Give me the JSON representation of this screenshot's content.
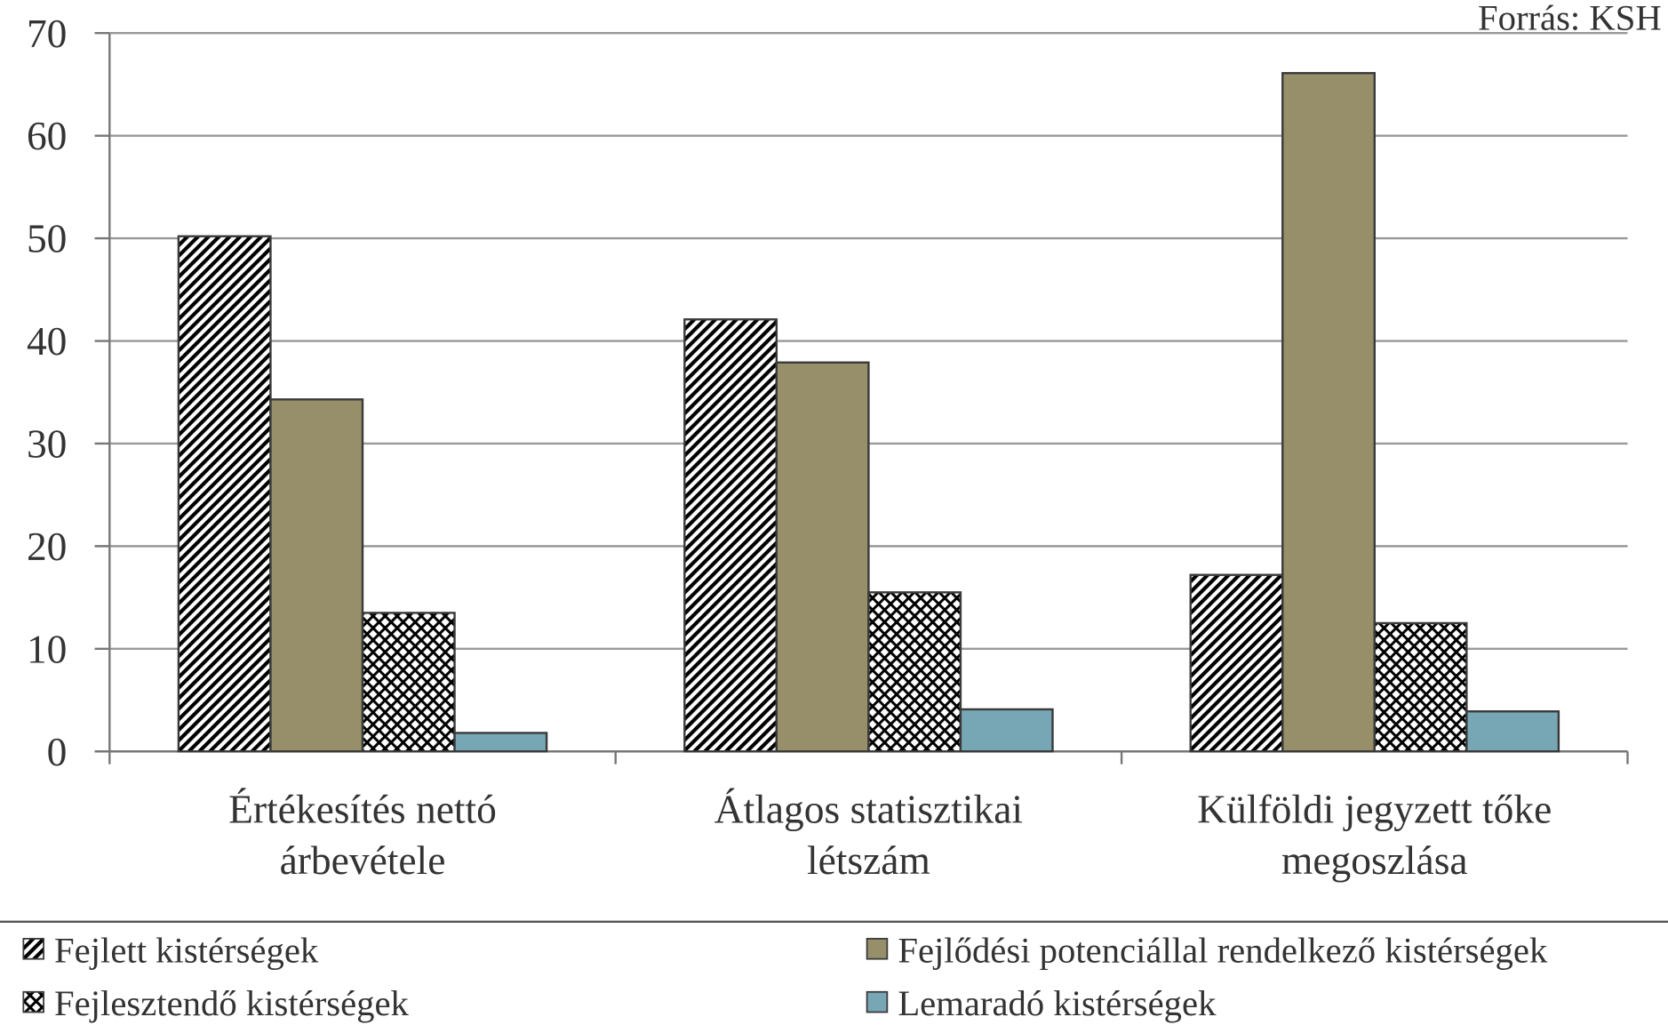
{
  "chart_data": {
    "type": "bar",
    "annotation": "Forrás: KSH",
    "categories": [
      [
        "Értékesítés nettó",
        "árbevétele"
      ],
      [
        "Átlagos statisztikai",
        "létszám"
      ],
      [
        "Külföldi jegyzett tőke",
        "megoszlása"
      ]
    ],
    "series": [
      {
        "name": "Fejlett kistérségek",
        "color": "#c0504d",
        "pattern": "diagonal",
        "values": [
          50.2,
          42.1,
          17.2
        ]
      },
      {
        "name": "Fejlődési potenciállal rendelkező kistérségek",
        "color": "#968f6a",
        "pattern": "solid",
        "values": [
          34.3,
          37.9,
          66.1
        ]
      },
      {
        "name": "Fejlesztendő kistérségek",
        "color": "#e3cf8d",
        "pattern": "crosshatch",
        "values": [
          13.5,
          15.5,
          12.5
        ]
      },
      {
        "name": "Lemaradó kistérségek",
        "color": "#77a7b4",
        "pattern": "solid",
        "values": [
          1.8,
          4.1,
          3.9
        ]
      }
    ],
    "ylim": [
      0,
      70
    ],
    "yticks": [
      0,
      10,
      20,
      30,
      40,
      50,
      60,
      70
    ],
    "grid": true,
    "legend": "bottom"
  }
}
